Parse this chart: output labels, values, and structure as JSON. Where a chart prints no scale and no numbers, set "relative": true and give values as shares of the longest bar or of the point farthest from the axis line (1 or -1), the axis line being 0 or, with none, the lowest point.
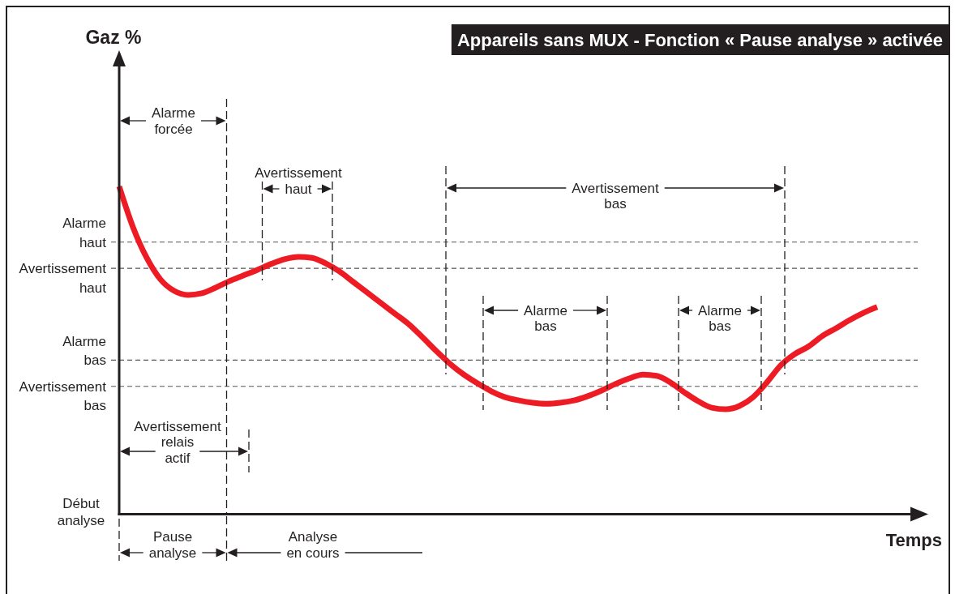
{
  "chart_data": {
    "type": "line",
    "title": "Appareils sans MUX - Fonction « Pause analyse » activée",
    "xlabel": "Temps",
    "categories": [
      null,
      null,
      null,
      null,
      null,
      null,
      null,
      null,
      null,
      null,
      null,
      null,
      null,
      null,
      null,
      null,
      null,
      null,
      null,
      null,
      null,
      null,
      null,
      null,
      null,
      null,
      null,
      null,
      null,
      null,
      null,
      null,
      null,
      null,
      null,
      null,
      null,
      null,
      null,
      null,
      null,
      null,
      null,
      null,
      null,
      null,
      null,
      null,
      null,
      null,
      null,
      null,
      null,
      null,
      null,
      null
    ],
    "relative": true,
    "series": [
      {
        "color": "#ed1c24",
        "values": [
          1.0,
          0.876,
          0.782,
          0.716,
          0.681,
          0.669,
          0.674,
          0.691,
          0.711,
          0.728,
          0.745,
          0.763,
          0.778,
          0.785,
          0.782,
          0.765,
          0.74,
          0.708,
          0.676,
          0.644,
          0.612,
          0.58,
          0.54,
          0.498,
          0.459,
          0.426,
          0.399,
          0.375,
          0.357,
          0.347,
          0.34,
          0.337,
          0.34,
          0.347,
          0.36,
          0.377,
          0.397,
          0.414,
          0.426,
          0.422,
          0.402,
          0.372,
          0.345,
          0.325,
          0.32,
          0.33,
          0.357,
          0.402,
          0.454,
          0.488,
          0.511,
          0.543,
          0.567,
          0.592,
          0.614,
          0.632
        ]
      }
    ],
    "ref_lines": [
      {
        "axis": "y",
        "value": 0.83,
        "label": "Alarme haut",
        "color": "#555555",
        "line_style": "dashed"
      },
      {
        "axis": "y",
        "value": 0.75,
        "label": "Avertissement haut",
        "color": "#555555",
        "line_style": "dashed"
      },
      {
        "axis": "y",
        "value": 0.47,
        "label": "Alarme bas",
        "color": "#555555",
        "line_style": "dashed"
      },
      {
        "axis": "y",
        "value": 0.39,
        "label": "Avertissement bas",
        "color": "#555555",
        "line_style": "dashed"
      }
    ],
    "annotations": [
      "Gaz %",
      "Alarme forcée",
      "Avertissement haut",
      "Avertissement bas",
      "Alarme bas",
      "Alarme bas",
      "Avertissement relais actif",
      "Pause analyse",
      "Analyse en cours",
      "Début analyse"
    ]
  }
}
